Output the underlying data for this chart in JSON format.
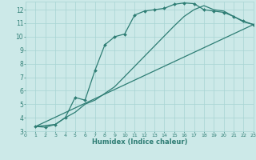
{
  "xlabel": "Humidex (Indice chaleur)",
  "bg_color": "#cce9e8",
  "grid_color": "#a8d4d3",
  "line_color": "#2e7d74",
  "xlim": [
    0,
    23
  ],
  "ylim": [
    3,
    12.6
  ],
  "xticks": [
    0,
    1,
    2,
    3,
    4,
    5,
    6,
    7,
    8,
    9,
    10,
    11,
    12,
    13,
    14,
    15,
    16,
    17,
    18,
    19,
    20,
    21,
    22,
    23
  ],
  "yticks": [
    3,
    4,
    5,
    6,
    7,
    8,
    9,
    10,
    11,
    12
  ],
  "line1_x": [
    1,
    2,
    3,
    4,
    5,
    6,
    7,
    8,
    9,
    10,
    11,
    12,
    13,
    14,
    15,
    16,
    17,
    18,
    19,
    20,
    21,
    22,
    23
  ],
  "line1_y": [
    3.35,
    3.3,
    3.5,
    4.0,
    5.5,
    5.3,
    7.5,
    9.4,
    10.0,
    10.2,
    11.6,
    11.9,
    12.0,
    12.1,
    12.4,
    12.5,
    12.45,
    12.0,
    11.9,
    11.8,
    11.5,
    11.15,
    10.9
  ],
  "line2_x": [
    1,
    3,
    4,
    5,
    6,
    7,
    9,
    11,
    13,
    15,
    16,
    17,
    18,
    19,
    20,
    21,
    22,
    23
  ],
  "line2_y": [
    3.35,
    3.5,
    4.0,
    4.4,
    5.0,
    5.3,
    6.3,
    7.8,
    9.3,
    10.8,
    11.5,
    12.0,
    12.3,
    12.0,
    11.9,
    11.5,
    11.1,
    10.9
  ],
  "line3_x": [
    1,
    23
  ],
  "line3_y": [
    3.35,
    10.9
  ]
}
